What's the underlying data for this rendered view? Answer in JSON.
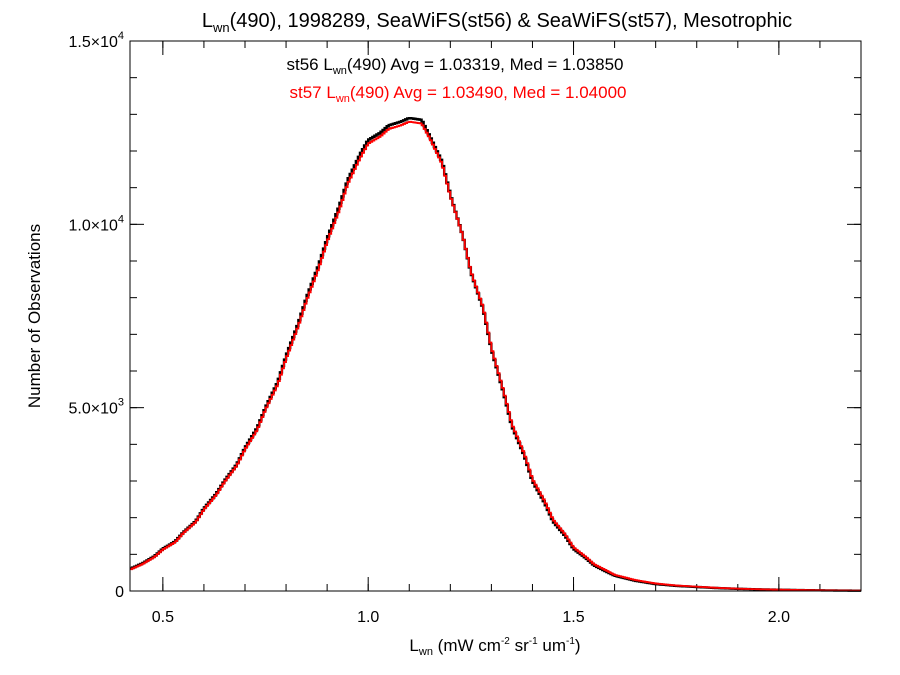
{
  "chart_data": {
    "type": "step-histogram",
    "title": {
      "prefix": "L",
      "sub": "wn",
      "rest": "(490), 1998289, SeaWiFS(st56) & SeaWiFS(st57), Mesotrophic"
    },
    "xlabel": {
      "prefix": "L",
      "sub": "wn",
      "units": [
        {
          "text": " (mW cm",
          "sup": "-2"
        },
        {
          "text": " sr",
          "sup": "-1"
        },
        {
          "text": " um",
          "sup": "-1"
        },
        {
          "text": ")",
          "sup": ""
        }
      ]
    },
    "ylabel": "Number of Observations",
    "xlim": [
      0.42,
      2.2
    ],
    "ylim": [
      0,
      15000
    ],
    "x_ticks": [
      {
        "value": 0.5,
        "label": "0.5"
      },
      {
        "value": 1.0,
        "label": "1.0"
      },
      {
        "value": 1.5,
        "label": "1.5"
      },
      {
        "value": 2.0,
        "label": "2.0"
      }
    ],
    "y_ticks": [
      {
        "value": 0,
        "mant": "0",
        "exp": ""
      },
      {
        "value": 5000,
        "mant": "5.0×10",
        "exp": "3"
      },
      {
        "value": 10000,
        "mant": "1.0×10",
        "exp": "4"
      },
      {
        "value": 15000,
        "mant": "1.5×10",
        "exp": "4"
      }
    ],
    "x_minor_step": 0.1,
    "y_minor_step": 1000,
    "bin_width": 0.005,
    "annotations": [
      {
        "series": "st56",
        "pre": "st56 L",
        "sub": "wn",
        "post": "(490) Avg = 1.03319, Med = 1.03850",
        "color": "#000000"
      },
      {
        "series": "st57",
        "pre": "st57 L",
        "sub": "wn",
        "post": "(490) Avg = 1.03490, Med = 1.04000",
        "color": "#ff0000"
      }
    ],
    "series": [
      {
        "name": "st56",
        "color": "#000000",
        "x": [
          0.42,
          0.45,
          0.48,
          0.5,
          0.53,
          0.55,
          0.58,
          0.6,
          0.63,
          0.65,
          0.68,
          0.7,
          0.73,
          0.75,
          0.78,
          0.8,
          0.83,
          0.85,
          0.88,
          0.9,
          0.93,
          0.95,
          0.98,
          1.0,
          1.03,
          1.05,
          1.08,
          1.1,
          1.13,
          1.15,
          1.18,
          1.2,
          1.23,
          1.25,
          1.28,
          1.3,
          1.33,
          1.35,
          1.38,
          1.4,
          1.43,
          1.45,
          1.48,
          1.5,
          1.53,
          1.55,
          1.58,
          1.6,
          1.65,
          1.7,
          1.75,
          1.8,
          1.85,
          1.9,
          1.95,
          2.0,
          2.05,
          2.1,
          2.15,
          2.2
        ],
        "y": [
          600,
          750,
          950,
          1150,
          1350,
          1600,
          1900,
          2250,
          2650,
          3000,
          3450,
          3900,
          4450,
          5000,
          5700,
          6400,
          7300,
          8000,
          8900,
          9600,
          10500,
          11200,
          11900,
          12300,
          12500,
          12700,
          12800,
          12900,
          12850,
          12400,
          11700,
          10800,
          9700,
          8700,
          7700,
          6600,
          5400,
          4500,
          3700,
          3000,
          2400,
          1900,
          1500,
          1150,
          900,
          700,
          530,
          420,
          280,
          190,
          140,
          110,
          80,
          60,
          45,
          35,
          25,
          18,
          12,
          8
        ]
      },
      {
        "name": "st57",
        "color": "#ff0000",
        "x": [
          0.42,
          0.45,
          0.48,
          0.5,
          0.53,
          0.55,
          0.58,
          0.6,
          0.63,
          0.65,
          0.68,
          0.7,
          0.73,
          0.75,
          0.78,
          0.8,
          0.83,
          0.85,
          0.88,
          0.9,
          0.93,
          0.95,
          0.98,
          1.0,
          1.03,
          1.05,
          1.08,
          1.1,
          1.13,
          1.15,
          1.18,
          1.2,
          1.23,
          1.25,
          1.28,
          1.3,
          1.33,
          1.35,
          1.38,
          1.4,
          1.43,
          1.45,
          1.48,
          1.5,
          1.53,
          1.55,
          1.58,
          1.6,
          1.65,
          1.7,
          1.75,
          1.8,
          1.85,
          1.9,
          1.95,
          2.0,
          2.05,
          2.1,
          2.15,
          2.2
        ],
        "y": [
          580,
          730,
          930,
          1130,
          1330,
          1580,
          1880,
          2220,
          2620,
          2970,
          3420,
          3860,
          4400,
          4950,
          5640,
          6330,
          7230,
          7920,
          8820,
          9520,
          10400,
          11100,
          11800,
          12200,
          12400,
          12600,
          12700,
          12800,
          12750,
          12350,
          11650,
          10780,
          9700,
          8720,
          7730,
          6640,
          5440,
          4550,
          3750,
          3050,
          2450,
          1950,
          1540,
          1190,
          930,
          730,
          560,
          440,
          300,
          205,
          150,
          118,
          86,
          64,
          48,
          37,
          27,
          19,
          13,
          9
        ]
      }
    ]
  }
}
